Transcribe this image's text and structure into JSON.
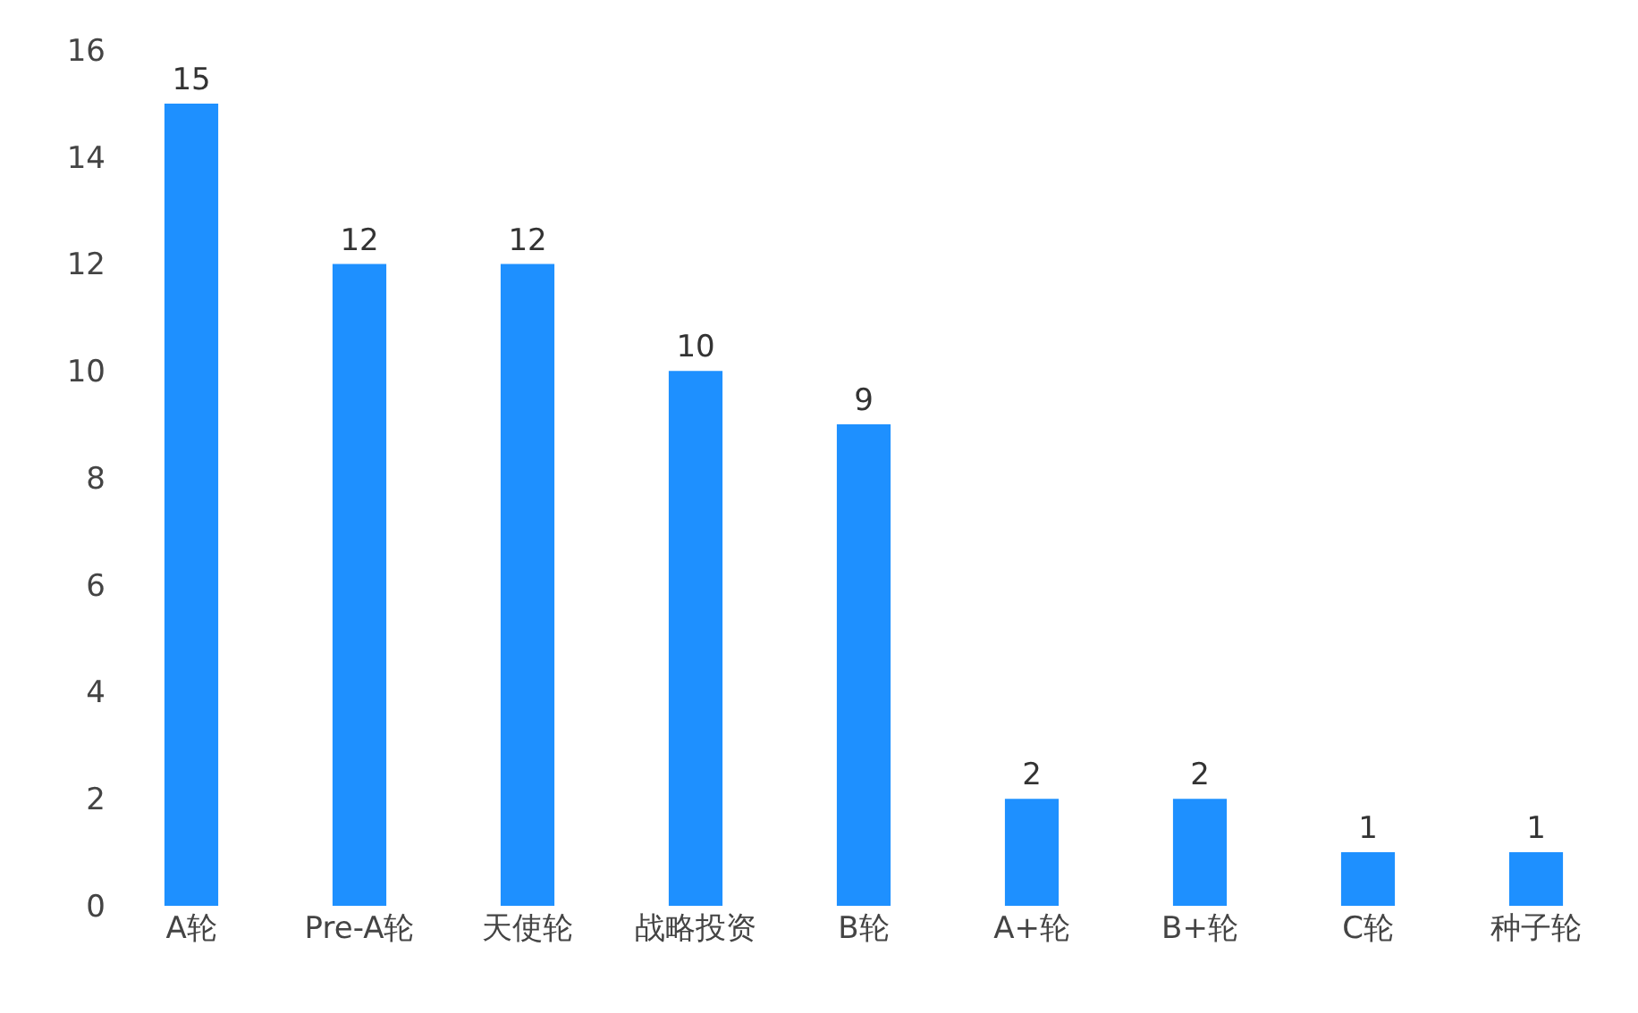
{
  "chart_data": {
    "type": "bar",
    "categories": [
      "A轮",
      "Pre-A轮",
      "天使轮",
      "战略投资",
      "B轮",
      "A+轮",
      "B+轮",
      "C轮",
      "种子轮"
    ],
    "values": [
      15,
      12,
      12,
      10,
      9,
      2,
      2,
      1,
      1
    ],
    "color": "#1e90ff",
    "ylim": [
      0,
      16
    ],
    "yticks": [
      0,
      2,
      4,
      6,
      8,
      10,
      12,
      14,
      16
    ],
    "data_labels": true
  }
}
